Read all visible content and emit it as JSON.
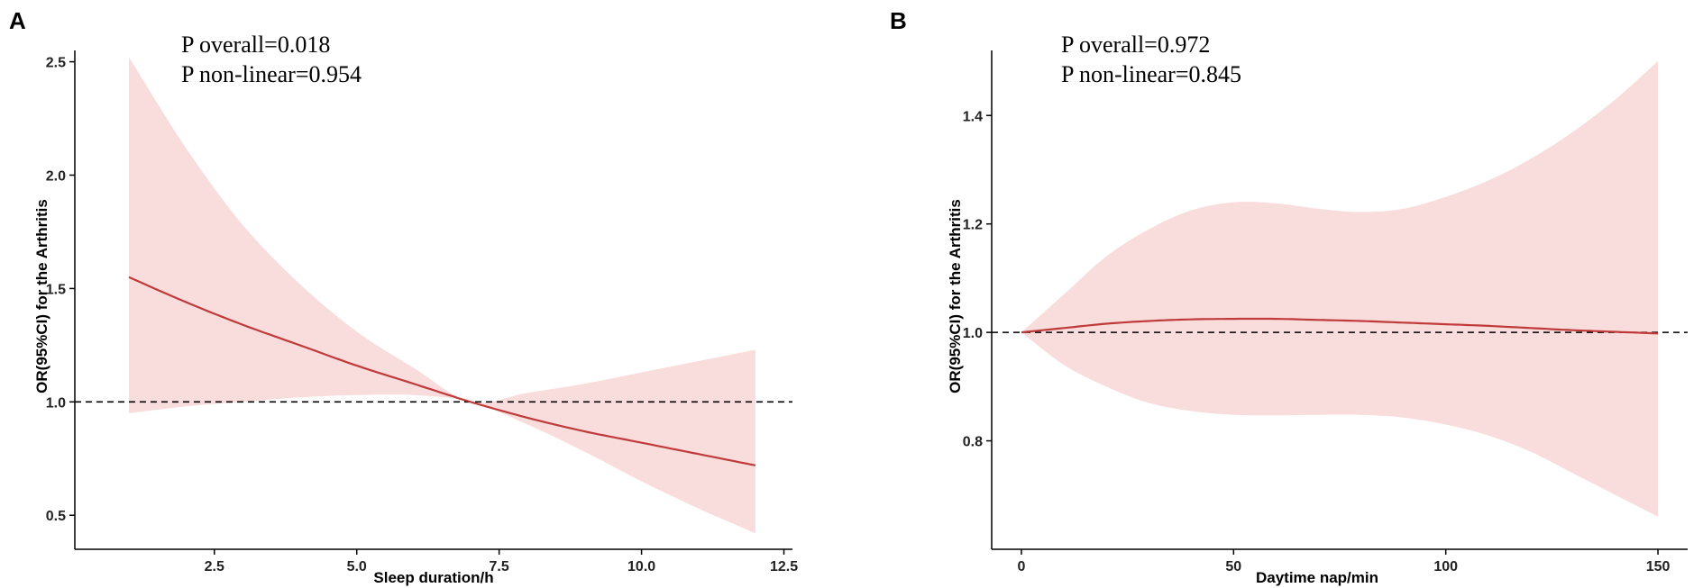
{
  "chart_data": [
    {
      "panel": "A",
      "type": "line",
      "title": "",
      "xlabel": "Sleep duration/h",
      "ylabel": "OR(95%CI) for the Arthritis",
      "xlim": [
        0.05,
        12.65
      ],
      "ylim": [
        0.35,
        2.55
      ],
      "xticks": [
        2.5,
        5.0,
        7.5,
        10.0,
        12.5
      ],
      "xtick_labels": [
        "2.5",
        "5.0",
        "7.5",
        "10.0",
        "12.5"
      ],
      "yticks": [
        0.5,
        1.0,
        1.5,
        2.0,
        2.5
      ],
      "ytick_labels": [
        "0.5",
        "1.0",
        "1.5",
        "2.0",
        "2.5"
      ],
      "reference_y": 1.0,
      "annotations": [
        "P overall=0.018",
        "P non-linear=0.954"
      ],
      "series": [
        {
          "name": "OR",
          "x": [
            1.0,
            2.0,
            3.0,
            4.0,
            5.0,
            6.0,
            7.0,
            8.0,
            9.0,
            10.0,
            11.0,
            12.0
          ],
          "y": [
            1.55,
            1.44,
            1.34,
            1.25,
            1.16,
            1.08,
            1.0,
            0.93,
            0.87,
            0.82,
            0.77,
            0.72
          ],
          "lower": [
            0.95,
            0.98,
            1.0,
            1.02,
            1.03,
            1.03,
            1.0,
            0.9,
            0.78,
            0.65,
            0.53,
            0.42
          ],
          "upper": [
            2.52,
            2.12,
            1.78,
            1.52,
            1.31,
            1.15,
            1.0,
            1.04,
            1.08,
            1.13,
            1.18,
            1.23
          ]
        }
      ]
    },
    {
      "panel": "B",
      "type": "line",
      "title": "",
      "xlabel": "Daytime nap/min",
      "ylabel": "OR(95%CI) for the Arthritis",
      "xlim": [
        -7,
        157
      ],
      "ylim": [
        0.6,
        1.52
      ],
      "xticks": [
        0,
        50,
        100,
        150
      ],
      "xtick_labels": [
        "0",
        "50",
        "100",
        "150"
      ],
      "yticks": [
        0.8,
        1.0,
        1.2,
        1.4
      ],
      "ytick_labels": [
        "0.8",
        "1.0",
        "1.2",
        "1.4"
      ],
      "reference_y": 1.0,
      "annotations": [
        "P overall=0.972",
        "P non-linear=0.845"
      ],
      "series": [
        {
          "name": "OR",
          "x": [
            0,
            10,
            20,
            30,
            40,
            50,
            60,
            70,
            80,
            90,
            100,
            110,
            120,
            130,
            140,
            150
          ],
          "y": [
            1.0,
            1.008,
            1.016,
            1.021,
            1.024,
            1.025,
            1.025,
            1.023,
            1.021,
            1.018,
            1.015,
            1.012,
            1.008,
            1.004,
            1.001,
            0.998
          ],
          "lower": [
            1.0,
            0.94,
            0.9,
            0.87,
            0.855,
            0.848,
            0.847,
            0.848,
            0.848,
            0.843,
            0.83,
            0.81,
            0.78,
            0.74,
            0.7,
            0.66
          ],
          "upper": [
            1.0,
            1.07,
            1.14,
            1.19,
            1.225,
            1.24,
            1.238,
            1.228,
            1.222,
            1.228,
            1.25,
            1.28,
            1.32,
            1.37,
            1.43,
            1.5
          ]
        }
      ]
    }
  ]
}
